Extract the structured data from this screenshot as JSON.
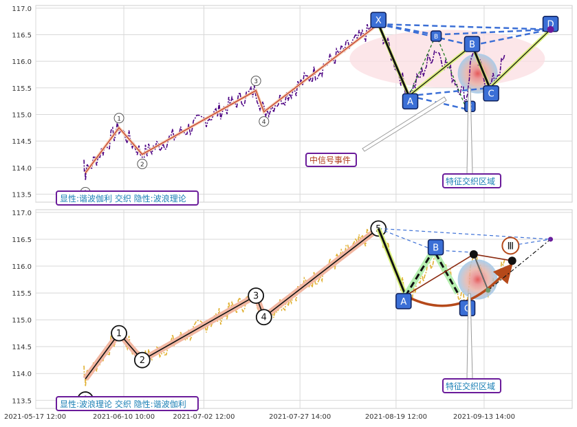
{
  "chart_data": [
    {
      "type": "line",
      "panel": "top",
      "ylim": [
        113.35,
        117.05
      ],
      "y_ticks": [
        "113.5",
        "114.0",
        "114.5",
        "115.0",
        "115.5",
        "116.0",
        "116.5",
        "117.0"
      ],
      "grid": true,
      "legend_box": "显性:谐波伽利 交织 隐性:波浪理论",
      "price_line_color": "#4b0082",
      "wave_line": {
        "color": "#c0392b",
        "points": [
          [
            0.7,
            113.9
          ],
          [
            4.9,
            114.75
          ],
          [
            7.8,
            114.25
          ],
          [
            22.0,
            115.45
          ],
          [
            23.0,
            115.05
          ],
          [
            37.3,
            116.7
          ]
        ],
        "labels": [
          "0",
          "1",
          "2",
          "3",
          "4",
          "5"
        ]
      },
      "harmonic": {
        "points": [
          {
            "label": "X",
            "x": 37.3,
            "y": 116.7
          },
          {
            "label": "A",
            "x": 41.1,
            "y": 115.35
          },
          {
            "label": "B",
            "x": 49.0,
            "y": 116.3
          },
          {
            "label": "C",
            "x": 51.2,
            "y": 115.5
          },
          {
            "label": "D",
            "x": 58.8,
            "y": 116.6
          }
        ],
        "alt_B": {
          "label": "B",
          "x": 44.5,
          "y": 116.5
        },
        "alt_C": {
          "label": "C",
          "x": 48.3,
          "y": 115.1
        },
        "color": "#3b6fd6"
      },
      "annotations": [
        "中信号事件",
        "特征交织区域"
      ]
    },
    {
      "type": "line",
      "panel": "bottom",
      "ylim": [
        113.35,
        117.05
      ],
      "y_ticks": [
        "113.5",
        "114.0",
        "114.5",
        "115.0",
        "115.5",
        "116.0",
        "116.5",
        "117.0"
      ],
      "grid": true,
      "legend_box": "显性:波浪理论 交织 隐性:谐波伽利",
      "price_line_color": "#e0b030",
      "wave": {
        "points": [
          {
            "label": "0",
            "x": 0.7,
            "y": 113.9
          },
          {
            "label": "1",
            "x": 4.9,
            "y": 114.75
          },
          {
            "label": "2",
            "x": 7.8,
            "y": 114.25
          },
          {
            "label": "3",
            "x": 22.0,
            "y": 115.45
          },
          {
            "label": "4",
            "x": 23.0,
            "y": 115.05
          },
          {
            "label": "5",
            "x": 37.3,
            "y": 116.7
          }
        ]
      },
      "abc": [
        {
          "label": "A",
          "x": 40.7,
          "y": 115.45
        },
        {
          "label": "B",
          "x": 44.2,
          "y": 116.3
        },
        {
          "label": "C",
          "x": 47.2,
          "y": 115.5
        }
      ],
      "wave_III_label": "Ⅲ",
      "annotations": [
        "特征交织区域"
      ]
    }
  ],
  "x_axis": {
    "tick_labels": [
      "2021-05-17 12:00",
      "2021-06-10 10:00",
      "2021-07-02 12:00",
      "2021-07-27 14:00",
      "2021-08-19 12:00",
      "2021-09-13 14:00"
    ],
    "tick_positions": [
      -5.5,
      5.5,
      15.5,
      27.5,
      39.5,
      50.5
    ],
    "range": [
      -5.5,
      61.5
    ]
  }
}
